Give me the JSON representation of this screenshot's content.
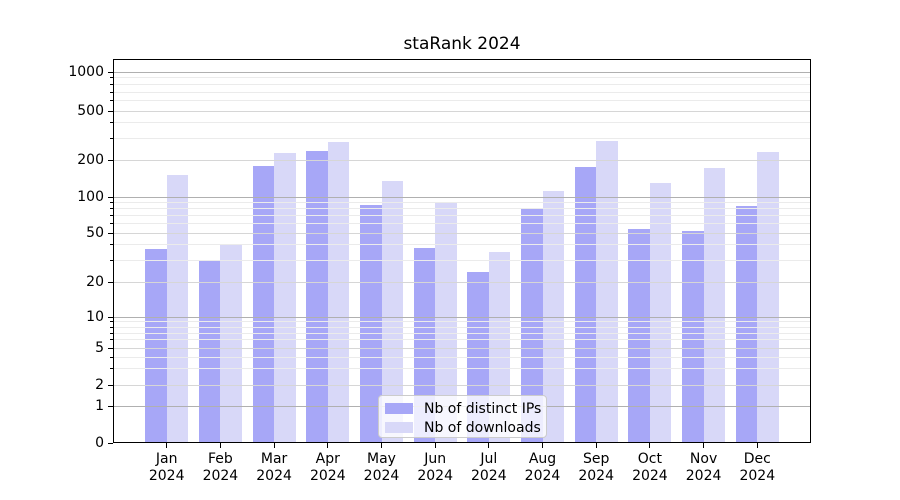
{
  "title": "staRank 2024",
  "colors": {
    "background": "#ffffff",
    "bar_ips": "#a7a7f7",
    "bar_downloads": "#d8d8f8",
    "grid_major": "#b0b0b0",
    "grid_mid": "#d6d6d6",
    "grid_minor": "#ebebeb",
    "spine": "#000000",
    "legend_border": "#cccccc"
  },
  "chart_data": {
    "type": "bar",
    "title": "staRank 2024",
    "categories": [
      "Jan",
      "Feb",
      "Mar",
      "Apr",
      "May",
      "Jun",
      "Jul",
      "Aug",
      "Sep",
      "Oct",
      "Nov",
      "Dec"
    ],
    "category_year": "2024",
    "series": [
      {
        "name": "Nb of distinct IPs",
        "color": "#a7a7f7",
        "values": [
          37,
          30,
          180,
          235,
          86,
          38,
          24,
          81,
          176,
          54,
          52,
          84
        ]
      },
      {
        "name": "Nb of downloads",
        "color": "#d8d8f8",
        "values": [
          152,
          41,
          230,
          280,
          134,
          89,
          35,
          112,
          285,
          131,
          171,
          232
        ]
      }
    ],
    "xlabel": "",
    "ylabel": "",
    "yscale": "symlog (linear 0-1, logarithmic above 1)",
    "yticks": [
      0,
      1,
      2,
      5,
      10,
      20,
      50,
      100,
      200,
      500,
      1000
    ],
    "ylim": [
      0,
      1300
    ],
    "grid": true,
    "legend": {
      "position": "lower center",
      "entries": [
        "Nb of distinct IPs",
        "Nb of downloads"
      ]
    }
  }
}
